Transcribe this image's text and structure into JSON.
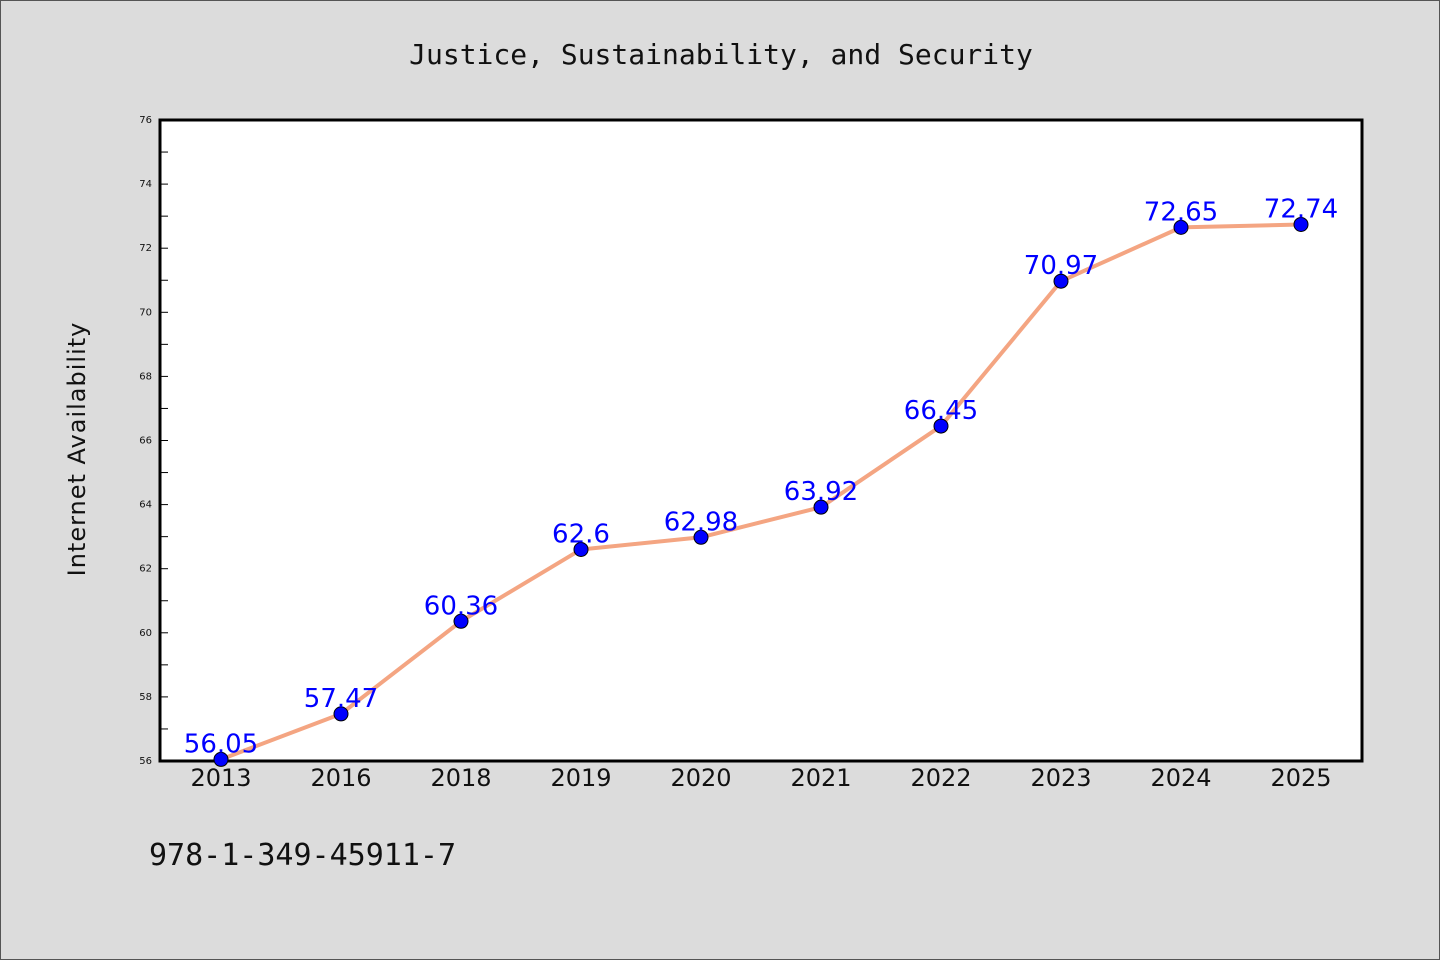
{
  "chart_data": {
    "type": "line",
    "title": "Justice, Sustainability, and Security",
    "xlabel": "",
    "ylabel": "Internet Availability",
    "categories": [
      "2013",
      "2016",
      "2018",
      "2019",
      "2020",
      "2021",
      "2022",
      "2023",
      "2024",
      "2025"
    ],
    "series": [
      {
        "values": [
          56.05,
          57.47,
          60.36,
          62.6,
          62.98,
          63.92,
          66.45,
          70.97,
          72.65,
          72.74
        ],
        "labels": [
          "56.05",
          "57.47",
          "60.36",
          "62.6",
          "62.98",
          "63.92",
          "66.45",
          "70.97",
          "72.65",
          "72.74"
        ]
      }
    ],
    "ylim": [
      56,
      76
    ],
    "yticks": [
      "56",
      "58",
      "60",
      "62",
      "64",
      "66",
      "68",
      "70",
      "72",
      "74",
      "76"
    ],
    "grid": false,
    "legend": "none",
    "colors": {
      "line": "#f4a582",
      "marker": "#0000ff",
      "data_label": "#0000ff",
      "background": "#dcdcdc",
      "plot_background": "#ffffff"
    }
  },
  "footer_note": "978-1-349-45911-7"
}
